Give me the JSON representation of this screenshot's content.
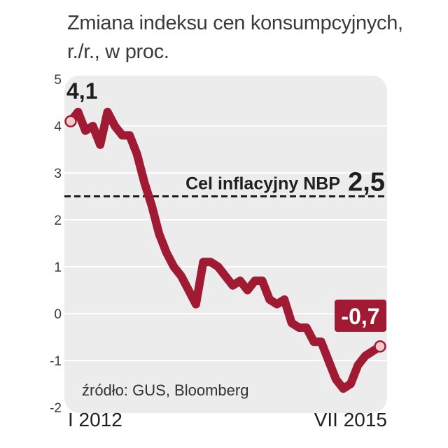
{
  "title_line1": "Zmiana indeksu cen konsumpcyjnych,",
  "title_line2": "r./r., w proc.",
  "source": "źródło: GUS, Bloomberg",
  "chart_data": {
    "type": "line",
    "ylim": [
      -2,
      5
    ],
    "yticks": [
      "5",
      "4",
      "3",
      "2",
      "1",
      "0",
      "-1",
      "-2"
    ],
    "x_start_label": "I 2012",
    "x_end_label": "VII 2015",
    "series": [
      {
        "color": "#a11a34",
        "values": [
          4.1,
          4.3,
          3.9,
          4.0,
          3.6,
          4.3,
          4.0,
          3.8,
          3.8,
          3.4,
          2.8,
          2.3,
          1.7,
          1.3,
          1.0,
          0.8,
          0.5,
          0.2,
          1.1,
          1.1,
          1.0,
          0.8,
          0.6,
          0.7,
          0.5,
          0.7,
          0.7,
          0.3,
          0.2,
          0.3,
          -0.2,
          -0.3,
          -0.3,
          -0.6,
          -0.6,
          -1.0,
          -1.4,
          -1.6,
          -1.5,
          -1.1,
          -0.9,
          -0.8,
          -0.7
        ]
      }
    ],
    "target_line": {
      "value": 2.5,
      "label": "Cel inflacyjny NBP",
      "value_label": "2,5"
    },
    "annotations": {
      "start_value": "4,1",
      "end_value": "-0,7"
    },
    "grid": true
  }
}
